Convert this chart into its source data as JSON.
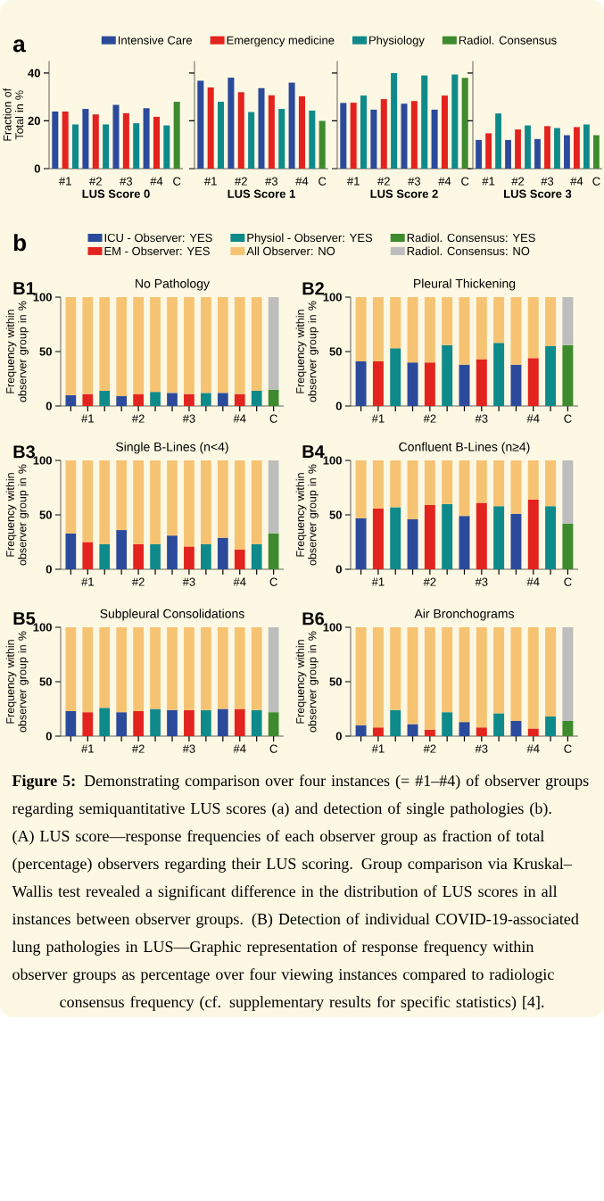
{
  "chart_data": [
    {
      "type": "bar",
      "xlabel": "LUS Score 0",
      "ylabel": "Fraction of Total in %",
      "categories": [
        null,
        "#1",
        null,
        null,
        "#2",
        null,
        null,
        "#3",
        null,
        null,
        "#4",
        null,
        "C"
      ],
      "ylim": [
        0,
        45
      ],
      "yticks": [
        0,
        20,
        40
      ],
      "legend": "top",
      "annotations": [
        "a"
      ],
      "series": [
        {
          "name": "Intensive Care",
          "color": "#2b4a9b",
          "values": [
            23.9,
            null,
            null,
            25.0,
            null,
            null,
            26.7,
            null,
            null,
            25.3,
            null,
            null,
            null
          ]
        },
        {
          "name": "Emergency medicine",
          "color": "#e3231e",
          "values": [
            null,
            23.9,
            null,
            null,
            22.7,
            null,
            null,
            23.2,
            null,
            null,
            21.7,
            null,
            null
          ]
        },
        {
          "name": "Physiology",
          "color": "#0f8a8a",
          "values": [
            null,
            null,
            18.5,
            null,
            null,
            18.5,
            null,
            null,
            19.0,
            null,
            null,
            18.1,
            null
          ]
        },
        {
          "name": "Radiol. Consensus",
          "color": "#3e8a2e",
          "values": [
            null,
            null,
            null,
            null,
            null,
            null,
            null,
            null,
            null,
            null,
            null,
            null,
            28.0
          ]
        }
      ]
    },
    {
      "type": "bar",
      "xlabel": "LUS Score 1",
      "categories": [
        null,
        "#1",
        null,
        null,
        "#2",
        null,
        null,
        "#3",
        null,
        null,
        "#4",
        null,
        "C"
      ],
      "ylim": [
        0,
        45
      ],
      "yticks": [
        0,
        20,
        40
      ],
      "tick_labels": "x",
      "series": [
        {
          "color": "#2b4a9b",
          "values": [
            36.8,
            null,
            null,
            38.1,
            null,
            null,
            33.7,
            null,
            null,
            36.0,
            null,
            null,
            null
          ]
        },
        {
          "color": "#e3231e",
          "values": [
            null,
            34.0,
            null,
            null,
            32.0,
            null,
            null,
            30.7,
            null,
            null,
            30.3,
            null,
            null
          ]
        },
        {
          "color": "#0f8a8a",
          "values": [
            null,
            null,
            28.0,
            null,
            null,
            23.7,
            null,
            null,
            25.0,
            null,
            null,
            24.3,
            null
          ]
        },
        {
          "color": "#3e8a2e",
          "values": [
            null,
            null,
            null,
            null,
            null,
            null,
            null,
            null,
            null,
            null,
            null,
            null,
            20.0
          ]
        }
      ]
    },
    {
      "type": "bar",
      "xlabel": "LUS Score 2",
      "categories": [
        null,
        "#1",
        null,
        null,
        "#2",
        null,
        null,
        "#3",
        null,
        null,
        "#4",
        null,
        "C"
      ],
      "ylim": [
        0,
        45
      ],
      "yticks": [
        0,
        20,
        40
      ],
      "tick_labels": "x",
      "series": [
        {
          "color": "#2b4a9b",
          "values": [
            27.5,
            null,
            null,
            24.7,
            null,
            null,
            27.2,
            null,
            null,
            24.7,
            null,
            null,
            null
          ]
        },
        {
          "color": "#e3231e",
          "values": [
            null,
            27.6,
            null,
            null,
            29.1,
            null,
            null,
            28.3,
            null,
            null,
            30.6,
            null,
            null
          ]
        },
        {
          "color": "#0f8a8a",
          "values": [
            null,
            null,
            30.6,
            null,
            null,
            40.0,
            null,
            null,
            39.0,
            null,
            null,
            39.4,
            null
          ]
        },
        {
          "color": "#3e8a2e",
          "values": [
            null,
            null,
            null,
            null,
            null,
            null,
            null,
            null,
            null,
            null,
            null,
            null,
            38.0
          ]
        }
      ]
    },
    {
      "type": "bar",
      "xlabel": "LUS Score 3",
      "categories": [
        null,
        "#1",
        null,
        null,
        "#2",
        null,
        null,
        "#3",
        null,
        null,
        "#4",
        null,
        "C"
      ],
      "ylim": [
        0,
        45
      ],
      "yticks": [
        0,
        20,
        40
      ],
      "tick_labels": "x",
      "series": [
        {
          "color": "#2b4a9b",
          "values": [
            12.0,
            null,
            null,
            12.0,
            null,
            null,
            12.4,
            null,
            null,
            14.0,
            null,
            null,
            null
          ]
        },
        {
          "color": "#e3231e",
          "values": [
            null,
            14.8,
            null,
            null,
            16.4,
            null,
            null,
            17.8,
            null,
            null,
            17.4,
            null,
            null
          ]
        },
        {
          "color": "#0f8a8a",
          "values": [
            null,
            null,
            23.1,
            null,
            null,
            18.1,
            null,
            null,
            17.0,
            null,
            null,
            18.5,
            null
          ]
        },
        {
          "color": "#3e8a2e",
          "values": [
            null,
            null,
            null,
            null,
            null,
            null,
            null,
            null,
            null,
            null,
            null,
            null,
            14.0
          ]
        }
      ]
    },
    {
      "type": "bar",
      "stacked": true,
      "title": "No Pathology",
      "ylabel": "Frequency within observer group in %",
      "categories": [
        null,
        "#1",
        null,
        null,
        "#2",
        null,
        null,
        "#3",
        null,
        null,
        "#4",
        null,
        "C"
      ],
      "ylim": [
        0,
        100
      ],
      "yticks": [
        0,
        50,
        100
      ],
      "legend": "top",
      "annotations": [
        "b",
        "B1"
      ],
      "series": [
        {
          "name": "ICU - Observer: YES",
          "color": "#2b4a9b",
          "values": [
            10,
            null,
            null,
            9,
            null,
            null,
            12,
            null,
            null,
            12,
            null,
            null,
            null
          ]
        },
        {
          "name": "EM - Observer: YES",
          "color": "#e3231e",
          "values": [
            null,
            11,
            null,
            null,
            11,
            null,
            null,
            11,
            null,
            null,
            11,
            null,
            null
          ]
        },
        {
          "name": "Physiol - Observer: YES",
          "color": "#0f8a8a",
          "values": [
            null,
            null,
            14,
            null,
            null,
            13,
            null,
            null,
            12,
            null,
            null,
            14,
            null
          ]
        },
        {
          "name": "All Observer: NO",
          "color": "#f6c373",
          "values": [
            90,
            89,
            86,
            91,
            89,
            87,
            88,
            89,
            88,
            88,
            89,
            86,
            null
          ]
        },
        {
          "name": "Radiol. Consensus: YES",
          "color": "#3e8a2e",
          "values": [
            null,
            null,
            null,
            null,
            null,
            null,
            null,
            null,
            null,
            null,
            null,
            null,
            15
          ]
        },
        {
          "name": "Radiol. Consensus: NO",
          "color": "#bdbdbd",
          "values": [
            null,
            null,
            null,
            null,
            null,
            null,
            null,
            null,
            null,
            null,
            null,
            null,
            85
          ]
        }
      ]
    },
    {
      "type": "bar",
      "stacked": true,
      "title": "Pleural Thickening",
      "ylabel": "Frequency within observer group in %",
      "categories": [
        null,
        "#1",
        null,
        null,
        "#2",
        null,
        null,
        "#3",
        null,
        null,
        "#4",
        null,
        "C"
      ],
      "ylim": [
        0,
        100
      ],
      "yticks": [
        0,
        50,
        100
      ],
      "annotations": [
        "B2"
      ],
      "series": [
        {
          "color": "#2b4a9b",
          "values": [
            41,
            null,
            null,
            40,
            null,
            null,
            38,
            null,
            null,
            38,
            null,
            null,
            null
          ]
        },
        {
          "color": "#e3231e",
          "values": [
            null,
            41,
            null,
            null,
            40,
            null,
            null,
            43,
            null,
            null,
            44,
            null,
            null
          ]
        },
        {
          "color": "#0f8a8a",
          "values": [
            null,
            null,
            53,
            null,
            null,
            56,
            null,
            null,
            58,
            null,
            null,
            55,
            null
          ]
        },
        {
          "color": "#f6c373",
          "values": [
            59,
            59,
            47,
            60,
            60,
            44,
            62,
            57,
            42,
            62,
            56,
            45,
            null
          ]
        },
        {
          "color": "#3e8a2e",
          "values": [
            null,
            null,
            null,
            null,
            null,
            null,
            null,
            null,
            null,
            null,
            null,
            null,
            56
          ]
        },
        {
          "color": "#bdbdbd",
          "values": [
            null,
            null,
            null,
            null,
            null,
            null,
            null,
            null,
            null,
            null,
            null,
            null,
            44
          ]
        }
      ]
    },
    {
      "type": "bar",
      "stacked": true,
      "title": "Single B-Lines (n<4)",
      "ylabel": "Frequency within observer group in %",
      "categories": [
        null,
        "#1",
        null,
        null,
        "#2",
        null,
        null,
        "#3",
        null,
        null,
        "#4",
        null,
        "C"
      ],
      "ylim": [
        0,
        100
      ],
      "yticks": [
        0,
        50,
        100
      ],
      "annotations": [
        "B3"
      ],
      "series": [
        {
          "color": "#2b4a9b",
          "values": [
            33,
            null,
            null,
            36,
            null,
            null,
            31,
            null,
            null,
            29,
            null,
            null,
            null
          ]
        },
        {
          "color": "#e3231e",
          "values": [
            null,
            25,
            null,
            null,
            23,
            null,
            null,
            21,
            null,
            null,
            18,
            null,
            null
          ]
        },
        {
          "color": "#0f8a8a",
          "values": [
            null,
            null,
            23,
            null,
            null,
            23,
            null,
            null,
            23,
            null,
            null,
            23,
            null
          ]
        },
        {
          "color": "#f6c373",
          "values": [
            67,
            75,
            77,
            64,
            77,
            77,
            69,
            79,
            77,
            71,
            82,
            77,
            null
          ]
        },
        {
          "color": "#3e8a2e",
          "values": [
            null,
            null,
            null,
            null,
            null,
            null,
            null,
            null,
            null,
            null,
            null,
            null,
            33
          ]
        },
        {
          "color": "#bdbdbd",
          "values": [
            null,
            null,
            null,
            null,
            null,
            null,
            null,
            null,
            null,
            null,
            null,
            null,
            67
          ]
        }
      ]
    },
    {
      "type": "bar",
      "stacked": true,
      "title": "Confluent B-Lines (n≥4)",
      "ylabel": "Frequency within observer group in %",
      "categories": [
        null,
        "#1",
        null,
        null,
        "#2",
        null,
        null,
        "#3",
        null,
        null,
        "#4",
        null,
        "C"
      ],
      "ylim": [
        0,
        100
      ],
      "yticks": [
        0,
        50,
        100
      ],
      "annotations": [
        "B4"
      ],
      "series": [
        {
          "color": "#2b4a9b",
          "values": [
            47,
            null,
            null,
            46,
            null,
            null,
            49,
            null,
            null,
            51,
            null,
            null,
            null
          ]
        },
        {
          "color": "#e3231e",
          "values": [
            null,
            56,
            null,
            null,
            59,
            null,
            null,
            61,
            null,
            null,
            64,
            null,
            null
          ]
        },
        {
          "color": "#0f8a8a",
          "values": [
            null,
            null,
            57,
            null,
            null,
            60,
            null,
            null,
            58,
            null,
            null,
            58,
            null
          ]
        },
        {
          "color": "#f6c373",
          "values": [
            53,
            44,
            43,
            54,
            41,
            40,
            51,
            39,
            42,
            49,
            36,
            42,
            null
          ]
        },
        {
          "color": "#3e8a2e",
          "values": [
            null,
            null,
            null,
            null,
            null,
            null,
            null,
            null,
            null,
            null,
            null,
            null,
            42
          ]
        },
        {
          "color": "#bdbdbd",
          "values": [
            null,
            null,
            null,
            null,
            null,
            null,
            null,
            null,
            null,
            null,
            null,
            null,
            58
          ]
        }
      ]
    },
    {
      "type": "bar",
      "stacked": true,
      "title": "Subpleural Consolidations",
      "ylabel": "Frequency within observer group in %",
      "categories": [
        null,
        "#1",
        null,
        null,
        "#2",
        null,
        null,
        "#3",
        null,
        null,
        "#4",
        null,
        "C"
      ],
      "ylim": [
        0,
        100
      ],
      "yticks": [
        0,
        50,
        100
      ],
      "annotations": [
        "B5"
      ],
      "series": [
        {
          "color": "#2b4a9b",
          "values": [
            23,
            null,
            null,
            22,
            null,
            null,
            24,
            null,
            null,
            25,
            null,
            null,
            null
          ]
        },
        {
          "color": "#e3231e",
          "values": [
            null,
            22,
            null,
            null,
            23,
            null,
            null,
            24,
            null,
            null,
            25,
            null,
            null
          ]
        },
        {
          "color": "#0f8a8a",
          "values": [
            null,
            null,
            26,
            null,
            null,
            25,
            null,
            null,
            24,
            null,
            null,
            24,
            null
          ]
        },
        {
          "color": "#f6c373",
          "values": [
            77,
            78,
            74,
            78,
            77,
            75,
            76,
            76,
            76,
            75,
            75,
            76,
            null
          ]
        },
        {
          "color": "#3e8a2e",
          "values": [
            null,
            null,
            null,
            null,
            null,
            null,
            null,
            null,
            null,
            null,
            null,
            null,
            22
          ]
        },
        {
          "color": "#bdbdbd",
          "values": [
            null,
            null,
            null,
            null,
            null,
            null,
            null,
            null,
            null,
            null,
            null,
            null,
            78
          ]
        }
      ]
    },
    {
      "type": "bar",
      "stacked": true,
      "title": "Air Bronchograms",
      "ylabel": "Frequency within observer group in %",
      "categories": [
        null,
        "#1",
        null,
        null,
        "#2",
        null,
        null,
        "#3",
        null,
        null,
        "#4",
        null,
        "C"
      ],
      "ylim": [
        0,
        100
      ],
      "yticks": [
        0,
        50,
        100
      ],
      "annotations": [
        "B6",
        "**Figure 5:** Demonstrating comparison over four instances (= #1–#4) of observer groups regarding semiquantitative LUS scores (a) and detection of single pathologies (b). (A) LUS score—response frequencies of each observer group as fraction of total (percentage) observers regarding their LUS scoring. Group comparison via Kruskal–Wallis test revealed a significant difference in the distribution of LUS scores in all instances between observer groups. (B) Detection of individual COVID-19-associated lung pathologies in LUS—Graphic representation of response frequency within observer groups as percentage over four viewing instances compared to radiologic consensus frequency (cf. supplementary results for specific statistics) [4]."
      ],
      "series": [
        {
          "color": "#2b4a9b",
          "values": [
            10,
            null,
            null,
            11,
            null,
            null,
            13,
            null,
            null,
            14,
            null,
            null,
            null
          ]
        },
        {
          "color": "#e3231e",
          "values": [
            null,
            8,
            null,
            null,
            6,
            null,
            null,
            8,
            null,
            null,
            7,
            null,
            null
          ]
        },
        {
          "color": "#0f8a8a",
          "values": [
            null,
            null,
            24,
            null,
            null,
            22,
            null,
            null,
            21,
            null,
            null,
            18,
            null
          ]
        },
        {
          "color": "#f6c373",
          "values": [
            90,
            92,
            76,
            89,
            94,
            78,
            87,
            92,
            79,
            86,
            93,
            82,
            null
          ]
        },
        {
          "color": "#3e8a2e",
          "values": [
            null,
            null,
            null,
            null,
            null,
            null,
            null,
            null,
            null,
            null,
            null,
            null,
            14
          ]
        },
        {
          "color": "#bdbdbd",
          "values": [
            null,
            null,
            null,
            null,
            null,
            null,
            null,
            null,
            null,
            null,
            null,
            null,
            86
          ]
        }
      ]
    }
  ]
}
